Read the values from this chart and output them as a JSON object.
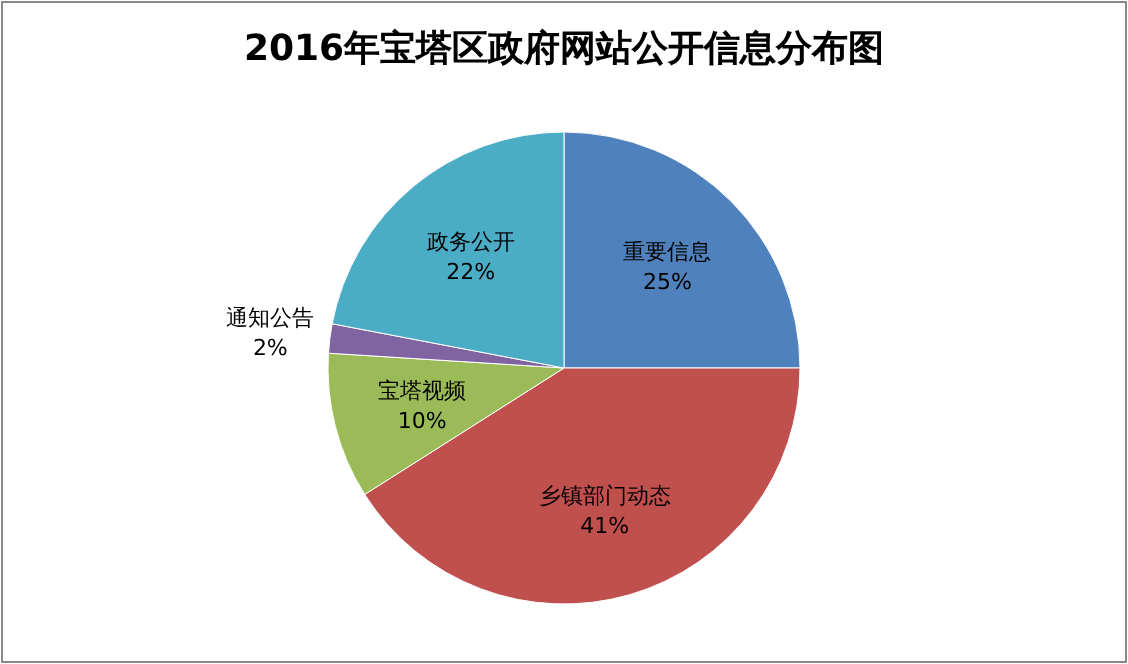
{
  "chart_data": {
    "type": "pie",
    "title": "2016年宝塔区政府网站公开信息分布图",
    "categories": [
      "重要信息",
      "乡镇部门动态",
      "宝塔视频",
      "通知公告",
      "政务公开"
    ],
    "values": [
      25,
      41,
      10,
      2,
      22
    ],
    "colors": [
      "#4f81bd",
      "#c0504d",
      "#9bbb59",
      "#8064a2",
      "#4bacc6"
    ],
    "value_labels": [
      "25%",
      "41%",
      "10%",
      "2%",
      "22%"
    ]
  }
}
